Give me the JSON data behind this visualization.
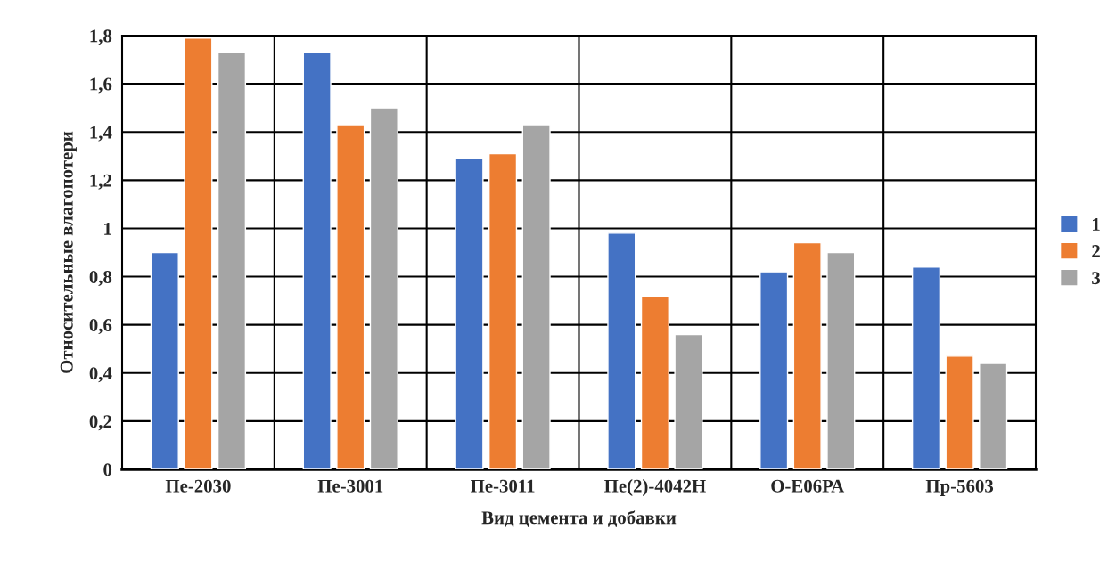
{
  "chart_data": {
    "type": "bar",
    "xlabel": "Вид цемента и добавки",
    "ylabel": "Относительные влагопотери",
    "categories": [
      "Пе-2030",
      "Пе-3001",
      "Пе-3011",
      "Пе(2)-4042Н",
      "О-Е06РА",
      "Пр-5603"
    ],
    "series": [
      {
        "name": "1",
        "color": "#4472c4",
        "values": [
          0.9,
          1.73,
          1.29,
          0.98,
          0.82,
          0.84
        ]
      },
      {
        "name": "2",
        "color": "#ed7d31",
        "values": [
          1.79,
          1.43,
          1.31,
          0.72,
          0.94,
          0.47
        ]
      },
      {
        "name": "3",
        "color": "#a5a5a5",
        "values": [
          1.73,
          1.5,
          1.43,
          0.56,
          0.9,
          0.44
        ]
      }
    ],
    "ylim": [
      0,
      1.8
    ],
    "yticks": [
      0,
      {
        "value": 0.2,
        "label": "0,2"
      },
      {
        "value": 0.4,
        "label": "0,4"
      },
      {
        "value": 0.6,
        "label": "0,6"
      },
      {
        "value": 0.8,
        "label": "0,8"
      },
      1,
      {
        "value": 1.2,
        "label": "1,2"
      },
      {
        "value": 1.4,
        "label": "1,4"
      },
      {
        "value": 1.6,
        "label": "1,6"
      },
      {
        "value": 1.8,
        "label": "1,8"
      }
    ],
    "grid": true,
    "legend": "right"
  }
}
